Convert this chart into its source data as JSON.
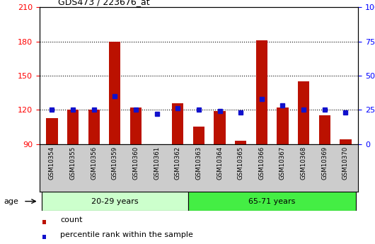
{
  "title": "GDS473 / 223676_at",
  "samples": [
    "GSM10354",
    "GSM10355",
    "GSM10356",
    "GSM10359",
    "GSM10360",
    "GSM10361",
    "GSM10362",
    "GSM10363",
    "GSM10364",
    "GSM10365",
    "GSM10366",
    "GSM10367",
    "GSM10368",
    "GSM10369",
    "GSM10370"
  ],
  "counts": [
    113,
    120,
    120,
    180,
    122,
    90,
    126,
    105,
    119,
    93,
    181,
    122,
    145,
    115,
    94
  ],
  "percentiles": [
    25,
    25,
    25,
    35,
    25,
    22,
    26,
    25,
    24,
    23,
    33,
    28,
    25,
    25,
    23
  ],
  "ylim_left": [
    90,
    210
  ],
  "ylim_right": [
    0,
    100
  ],
  "yticks_left": [
    90,
    120,
    150,
    180,
    210
  ],
  "yticks_right": [
    0,
    25,
    50,
    75,
    100
  ],
  "bar_color": "#bb1100",
  "dot_color": "#1111cc",
  "group1_label": "20-29 years",
  "group2_label": "65-71 years",
  "group1_count": 7,
  "group2_count": 8,
  "age_label": "age",
  "group1_color": "#ccffcc",
  "group2_color": "#44ee44",
  "bar_width": 0.55,
  "baseline": 90,
  "legend_count_label": "count",
  "legend_pct_label": "percentile rank within the sample",
  "bg_color": "#ffffff",
  "sample_bg_color": "#cccccc",
  "gridline_color": "#000000",
  "gridline_style": ":",
  "gridline_lw": 0.8,
  "gridlines_at": [
    120,
    150,
    180
  ]
}
